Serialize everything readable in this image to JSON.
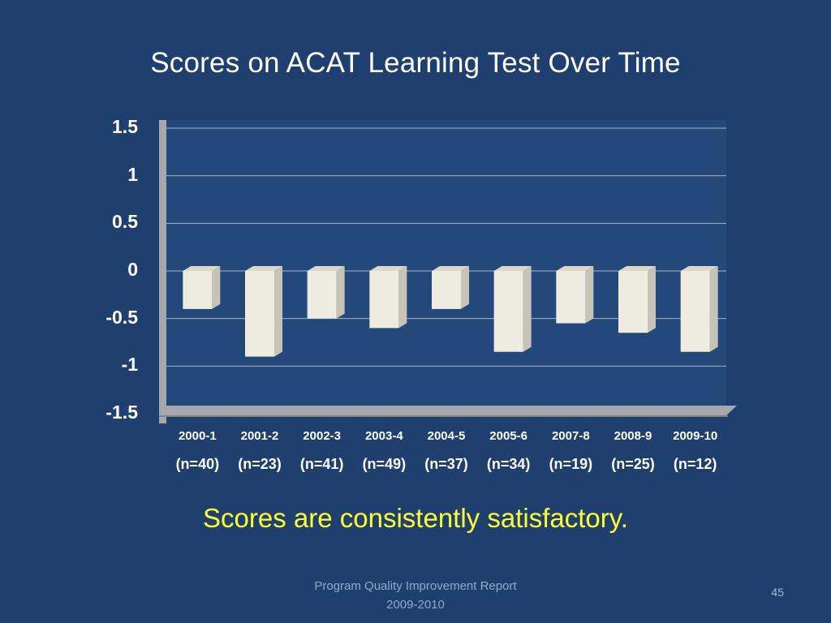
{
  "slide": {
    "title": "Scores on ACAT Learning Test Over Time",
    "caption": "Scores are consistently satisfactory.",
    "footer_line1": "Program Quality Improvement Report",
    "footer_line2": "2009-2010",
    "page_number": "45"
  },
  "colors": {
    "background": "#1F406E",
    "plot_wall": "#23497B",
    "gridline": "#A9B2BE",
    "wall_gray": "#A5A9AE",
    "wall_edge": "#7E8287",
    "bar_face": "#EEEBE0",
    "bar_side": "#C7C4B7",
    "bar_top": "#DBD8CB",
    "title": "#FFFFFF",
    "axis_label": "#FFFFFF",
    "caption": "#FFFF33",
    "footer": "#8FA8C8",
    "page_number": "#A9BCD6"
  },
  "chart_data": {
    "type": "bar",
    "title": "Scores on ACAT Learning Test Over Time",
    "categories": [
      "2000-1",
      "2001-2",
      "2002-3",
      "2003-4",
      "2004-5",
      "2005-6",
      "2007-8",
      "2008-9",
      "2009-10"
    ],
    "sample_sizes": [
      "(n=40)",
      "(n=23)",
      "(n=41)",
      "(n=49)",
      "(n=37)",
      "(n=34)",
      "(n=19)",
      "(n=25)",
      "(n=12)"
    ],
    "values": [
      -0.4,
      -0.9,
      -0.5,
      -0.6,
      -0.4,
      -0.85,
      -0.55,
      -0.65,
      -0.85
    ],
    "xlabel": "",
    "ylabel": "",
    "ylim": [
      -1.5,
      1.5
    ],
    "yticks": [
      1.5,
      1,
      0.5,
      0,
      -0.5,
      -1,
      -1.5
    ],
    "ytick_labels": [
      "1.5",
      "1",
      "0.5",
      "0",
      "-0.5",
      "-1",
      "-1.5"
    ],
    "grid": true,
    "legend": false,
    "bar_color": "#EEEBE0",
    "style": "3d-effect bars hanging below zero line on dark blue slide"
  }
}
